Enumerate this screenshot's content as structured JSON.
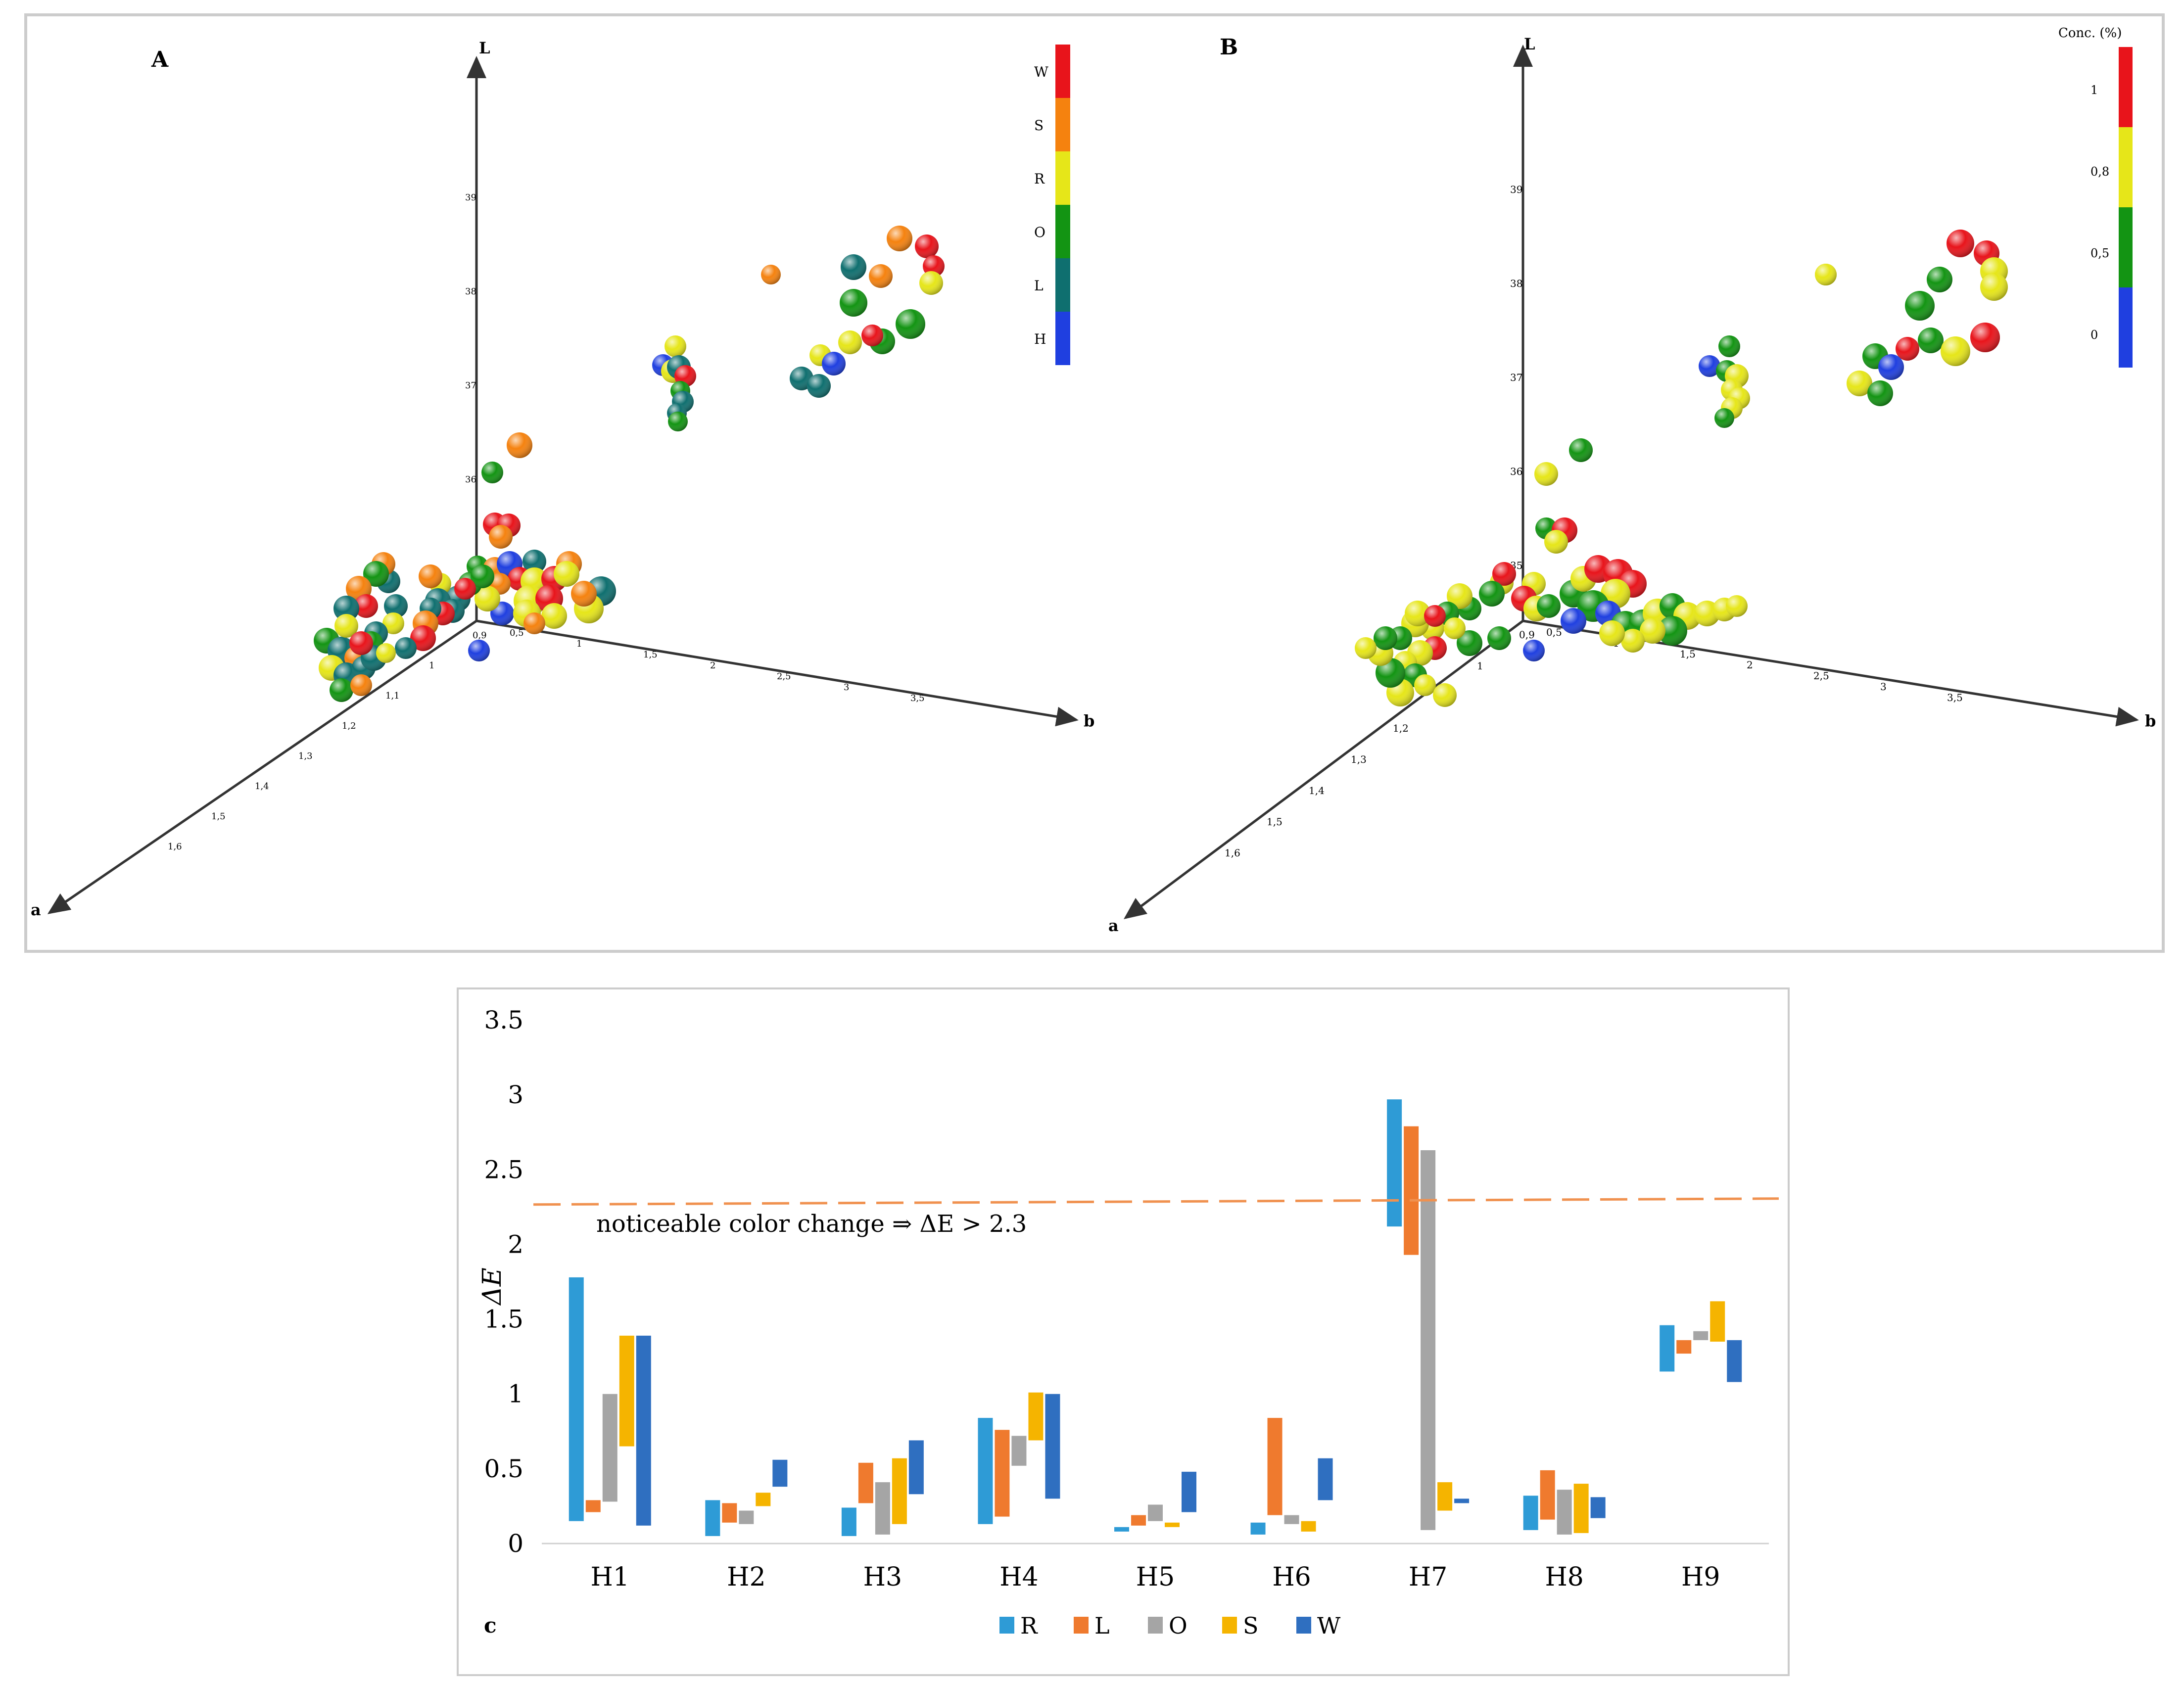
{
  "panel_a": {
    "label": "A",
    "axis_l": "L",
    "axis_a": "a",
    "axis_b": "b",
    "l_ticks": [
      "39",
      "38",
      "37",
      "36"
    ],
    "b_ticks": [
      "0,5",
      "1",
      "1,5",
      "2",
      "2,5",
      "3",
      "3,5"
    ],
    "a_ticks": [
      "0,9",
      "1",
      "1,1",
      "1,2",
      "1,3",
      "1,4",
      "1,5",
      "1,6"
    ],
    "legend_labels": [
      "W",
      "S",
      "R",
      "O",
      "L",
      "H"
    ]
  },
  "panel_b": {
    "label": "B",
    "axis_l": "L",
    "axis_a": "a",
    "axis_b": "b",
    "l_ticks": [
      "39",
      "38",
      "37",
      "36",
      "35"
    ],
    "b_ticks": [
      "0,5",
      "1",
      "1,5",
      "2",
      "2,5",
      "3",
      "3,5"
    ],
    "a_ticks": [
      "0,9",
      "1",
      "1,1",
      "1,2",
      "1,3",
      "1,4",
      "1,5",
      "1,6"
    ],
    "legend_title": "Conc. (%)",
    "legend_labels": [
      "1",
      "0,8",
      "0,5",
      "0"
    ]
  },
  "panel_c": {
    "label": "c"
  },
  "colors": {
    "W": "#e8141b",
    "S": "#f5820f",
    "R": "#e6e619",
    "O": "#139413",
    "L": "#0f6f6f",
    "H": "#1f3fe0",
    "bar_R": "#2e9bd6",
    "bar_L": "#ef7a2e",
    "bar_O": "#a5a5a5",
    "bar_S": "#f5b400",
    "bar_W": "#2f6fc0",
    "threshold": "#f0914f"
  },
  "chart_data": {
    "type": "bar",
    "ylabel": "ΔE",
    "ylim": [
      0,
      3.5
    ],
    "yticks": [
      "0",
      "0.5",
      "1",
      "1.5",
      "2",
      "2.5",
      "3",
      "3.5"
    ],
    "categories": [
      "H1",
      "H2",
      "H3",
      "H4",
      "H5",
      "H6",
      "H7",
      "H8",
      "H9"
    ],
    "series": [
      {
        "name": "R",
        "color": "#2e9bd6",
        "ranges": [
          [
            0.15,
            1.78
          ],
          [
            0.05,
            0.29
          ],
          [
            0.05,
            0.24
          ],
          [
            0.13,
            0.84
          ],
          [
            0.08,
            0.11
          ],
          [
            0.06,
            0.14
          ],
          [
            2.12,
            2.97
          ],
          [
            0.09,
            0.32
          ],
          [
            1.15,
            1.46
          ]
        ]
      },
      {
        "name": "L",
        "color": "#ef7a2e",
        "ranges": [
          [
            0.21,
            0.29
          ],
          [
            0.14,
            0.27
          ],
          [
            0.27,
            0.54
          ],
          [
            0.18,
            0.76
          ],
          [
            0.12,
            0.19
          ],
          [
            0.19,
            0.84
          ],
          [
            1.93,
            2.79
          ],
          [
            0.16,
            0.49
          ],
          [
            1.27,
            1.36
          ]
        ]
      },
      {
        "name": "O",
        "color": "#a5a5a5",
        "ranges": [
          [
            0.28,
            1.0
          ],
          [
            0.13,
            0.22
          ],
          [
            0.06,
            0.41
          ],
          [
            0.52,
            0.72
          ],
          [
            0.15,
            0.26
          ],
          [
            0.13,
            0.19
          ],
          [
            0.09,
            2.63
          ],
          [
            0.06,
            0.36
          ],
          [
            1.36,
            1.42
          ]
        ]
      },
      {
        "name": "S",
        "color": "#f5b400",
        "ranges": [
          [
            0.65,
            1.39
          ],
          [
            0.25,
            0.34
          ],
          [
            0.13,
            0.57
          ],
          [
            0.69,
            1.01
          ],
          [
            0.11,
            0.14
          ],
          [
            0.08,
            0.15
          ],
          [
            0.22,
            0.41
          ],
          [
            0.07,
            0.4
          ],
          [
            1.35,
            1.62
          ]
        ]
      },
      {
        "name": "W",
        "color": "#2f6fc0",
        "ranges": [
          [
            0.12,
            1.39
          ],
          [
            0.38,
            0.56
          ],
          [
            0.33,
            0.69
          ],
          [
            0.3,
            1.0
          ],
          [
            0.21,
            0.48
          ],
          [
            0.29,
            0.57
          ],
          [
            0.27,
            0.3
          ],
          [
            0.17,
            0.31
          ],
          [
            1.08,
            1.36
          ]
        ]
      }
    ],
    "threshold": {
      "value": 2.3,
      "label": "noticeable color change ⇒ ΔE > 2.3"
    },
    "legend": [
      "R",
      "L",
      "O",
      "S",
      "W"
    ],
    "legend_position": "bottom"
  }
}
